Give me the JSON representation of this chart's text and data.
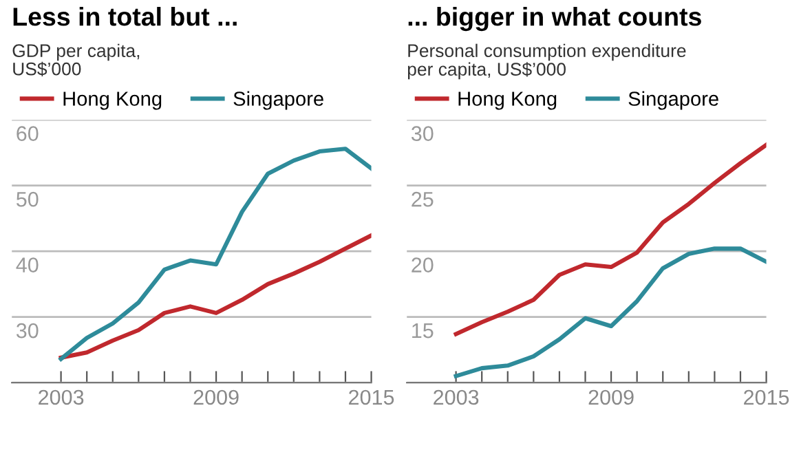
{
  "chart_data": [
    {
      "type": "line",
      "title": "Less in total but ...",
      "subtitle": "GDP per capita,\nUS$’000",
      "x": [
        2003,
        2004,
        2005,
        2006,
        2007,
        2008,
        2009,
        2010,
        2011,
        2012,
        2013,
        2014,
        2015
      ],
      "series": [
        {
          "name": "Hong Kong",
          "color": "#c0282d",
          "values": [
            23.8,
            24.6,
            26.4,
            28.0,
            30.6,
            31.6,
            30.6,
            32.6,
            35.0,
            36.6,
            38.4,
            40.4,
            42.4
          ]
        },
        {
          "name": "Singapore",
          "color": "#2e8b9a",
          "values": [
            23.6,
            26.8,
            29.0,
            32.2,
            37.2,
            38.6,
            38.0,
            46.0,
            51.8,
            53.8,
            55.2,
            55.6,
            52.6
          ]
        }
      ],
      "xlim": [
        2001.1,
        2015
      ],
      "xticks": [
        2003,
        {
          "value": 2004,
          "label": null
        },
        {
          "value": 2005,
          "label": null
        },
        {
          "value": 2006,
          "label": null
        },
        {
          "value": 2007,
          "label": null
        },
        {
          "value": 2008,
          "label": null
        },
        2009,
        {
          "value": 2010,
          "label": null
        },
        {
          "value": 2011,
          "label": null
        },
        {
          "value": 2012,
          "label": null
        },
        {
          "value": 2013,
          "label": null
        },
        {
          "value": 2014,
          "label": null
        },
        2015
      ],
      "ylim": [
        20,
        60
      ],
      "yticks": [
        {
          "value": 20,
          "label": null
        },
        30,
        40,
        50,
        60
      ],
      "grid": "y",
      "legend": "top",
      "marker": "none",
      "line_style": "solid"
    },
    {
      "type": "line",
      "title": "... bigger in what counts",
      "subtitle": "Personal consumption expenditure\nper capita, US$’000",
      "x": [
        2003,
        2004,
        2005,
        2006,
        2007,
        2008,
        2009,
        2010,
        2011,
        2012,
        2013,
        2014,
        2015
      ],
      "series": [
        {
          "name": "Hong Kong",
          "color": "#c0282d",
          "values": [
            13.7,
            14.6,
            15.4,
            16.3,
            18.2,
            19.0,
            18.8,
            19.9,
            22.2,
            23.6,
            25.2,
            26.7,
            28.1
          ]
        },
        {
          "name": "Singapore",
          "color": "#2e8b9a",
          "values": [
            10.5,
            11.1,
            11.3,
            12.0,
            13.3,
            14.9,
            14.3,
            16.2,
            18.7,
            19.8,
            20.2,
            20.2,
            19.2
          ]
        }
      ],
      "xlim": [
        2001.1,
        2015
      ],
      "xticks": [
        2003,
        {
          "value": 2004,
          "label": null
        },
        {
          "value": 2005,
          "label": null
        },
        {
          "value": 2006,
          "label": null
        },
        {
          "value": 2007,
          "label": null
        },
        {
          "value": 2008,
          "label": null
        },
        2009,
        {
          "value": 2010,
          "label": null
        },
        {
          "value": 2011,
          "label": null
        },
        {
          "value": 2012,
          "label": null
        },
        {
          "value": 2013,
          "label": null
        },
        {
          "value": 2014,
          "label": null
        },
        2015
      ],
      "ylim": [
        10,
        30
      ],
      "yticks": [
        {
          "value": 10,
          "label": null
        },
        15,
        20,
        25,
        30
      ],
      "grid": "y",
      "legend": "top",
      "marker": "none",
      "line_style": "solid"
    }
  ]
}
